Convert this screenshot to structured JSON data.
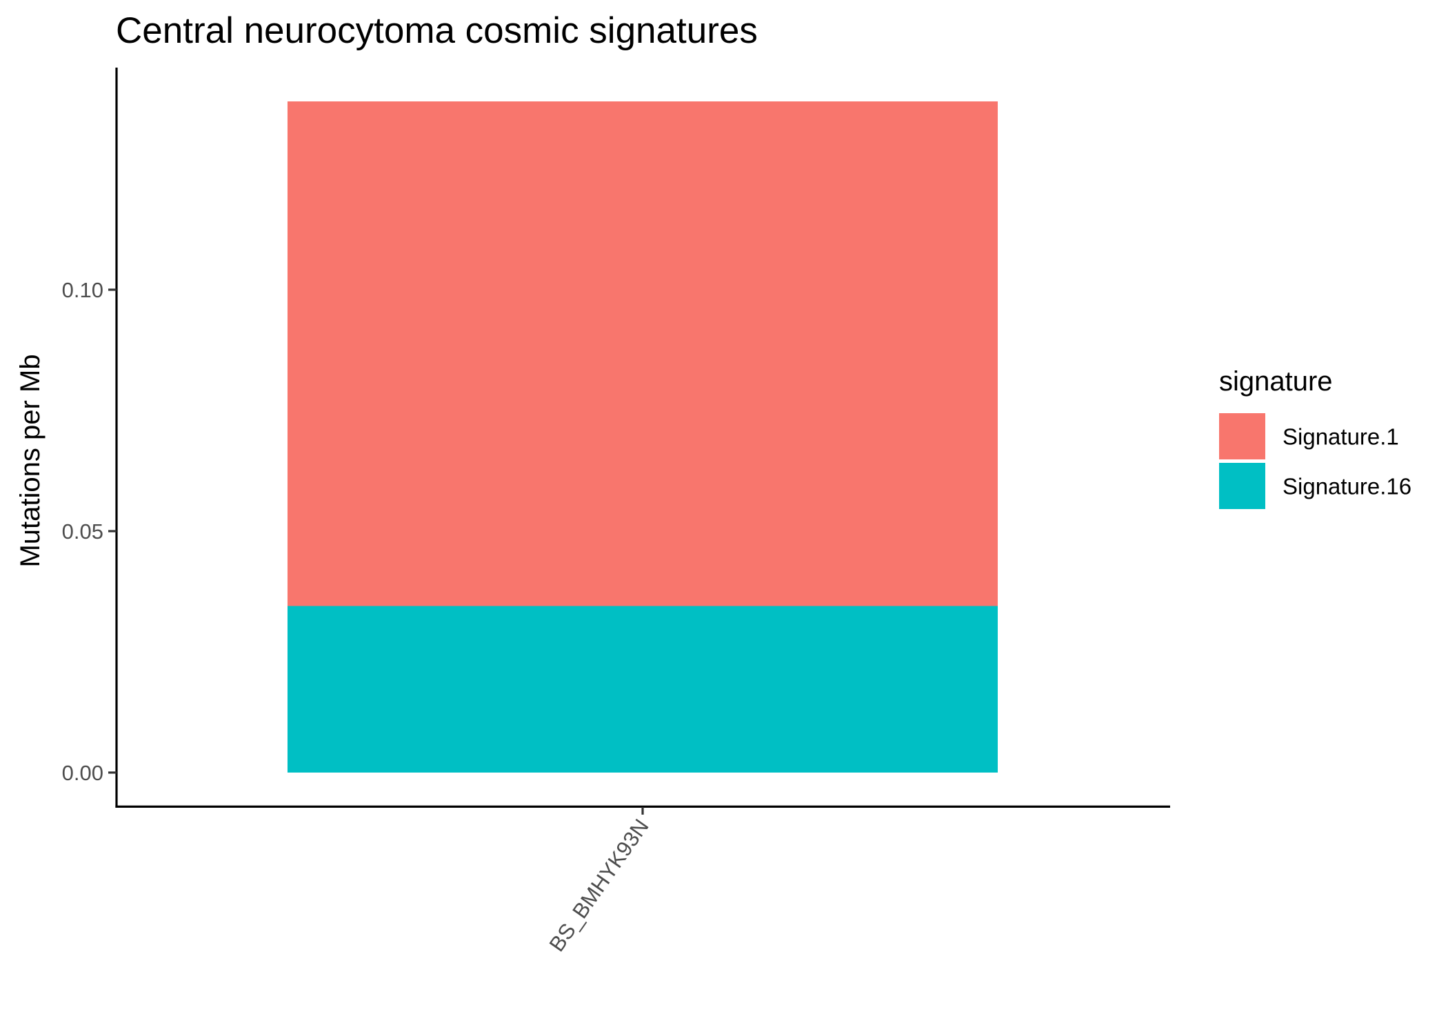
{
  "chart_data": {
    "type": "bar",
    "stacked": true,
    "title": "Central neurocytoma cosmic signatures",
    "xlabel": "",
    "ylabel": "Mutations per Mb",
    "categories": [
      "BS_BMHYK93N"
    ],
    "series": [
      {
        "name": "Signature.16",
        "values": [
          0.0345
        ],
        "color": "#00BFC4"
      },
      {
        "name": "Signature.1",
        "values": [
          0.1045
        ],
        "color": "#F8766D"
      }
    ],
    "ylim": [
      -0.007,
      0.146
    ],
    "y_ticks": [
      {
        "value": 0.0,
        "label": "0.00"
      },
      {
        "value": 0.05,
        "label": "0.05"
      },
      {
        "value": 0.1,
        "label": "0.10"
      }
    ],
    "grid": false,
    "legend": {
      "title": "signature",
      "position": "right",
      "entries": [
        {
          "label": "Signature.1",
          "color": "#F8766D"
        },
        {
          "label": "Signature.16",
          "color": "#00BFC4"
        }
      ]
    }
  }
}
